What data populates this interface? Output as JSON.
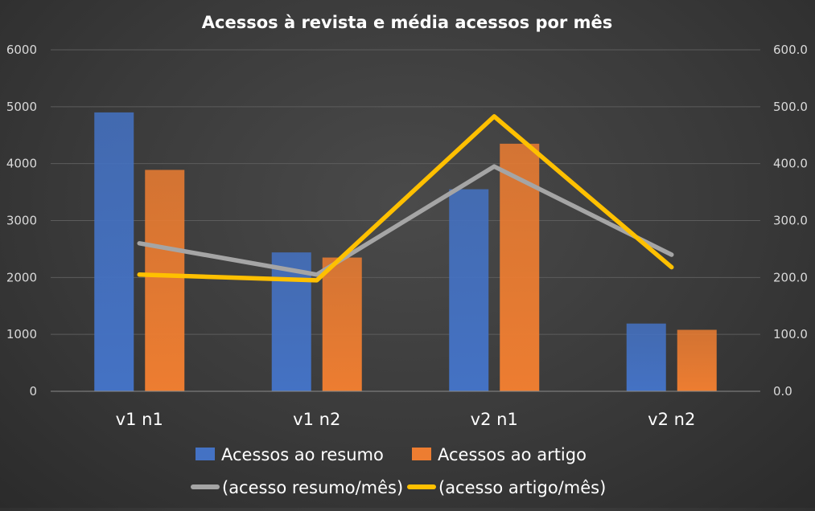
{
  "chart_data": {
    "type": "bar",
    "title": "Acessos à revista e média acessos por mês",
    "categories": [
      "v1 n1",
      "v1 n2",
      "v2 n1",
      "v2 n2"
    ],
    "y_left": {
      "ylim": [
        0,
        6000
      ],
      "ticks": [
        "0",
        "1000",
        "2000",
        "3000",
        "4000",
        "5000",
        "6000"
      ]
    },
    "y_right": {
      "ylim": [
        0,
        600
      ],
      "ticks": [
        "0.0",
        "100.0",
        "200.0",
        "300.0",
        "400.0",
        "500.0",
        "600.0"
      ]
    },
    "grid": true,
    "legend_position": "bottom",
    "series": [
      {
        "name": "Acessos ao resumo",
        "kind": "bar",
        "axis": "left",
        "color": "#4472c4",
        "values": [
          4900,
          2440,
          3550,
          1190
        ]
      },
      {
        "name": "Acessos ao artigo",
        "kind": "bar",
        "axis": "left",
        "color": "#ed7d31",
        "values": [
          3890,
          2350,
          4350,
          1080
        ]
      },
      {
        "name": "(acesso resumo/mês)",
        "kind": "line",
        "axis": "right",
        "color": "#a5a5a5",
        "values": [
          260,
          205,
          395,
          240
        ]
      },
      {
        "name": "(acesso artigo/mês)",
        "kind": "line",
        "axis": "right",
        "color": "#ffc000",
        "values": [
          205,
          195,
          483,
          218
        ]
      }
    ]
  }
}
